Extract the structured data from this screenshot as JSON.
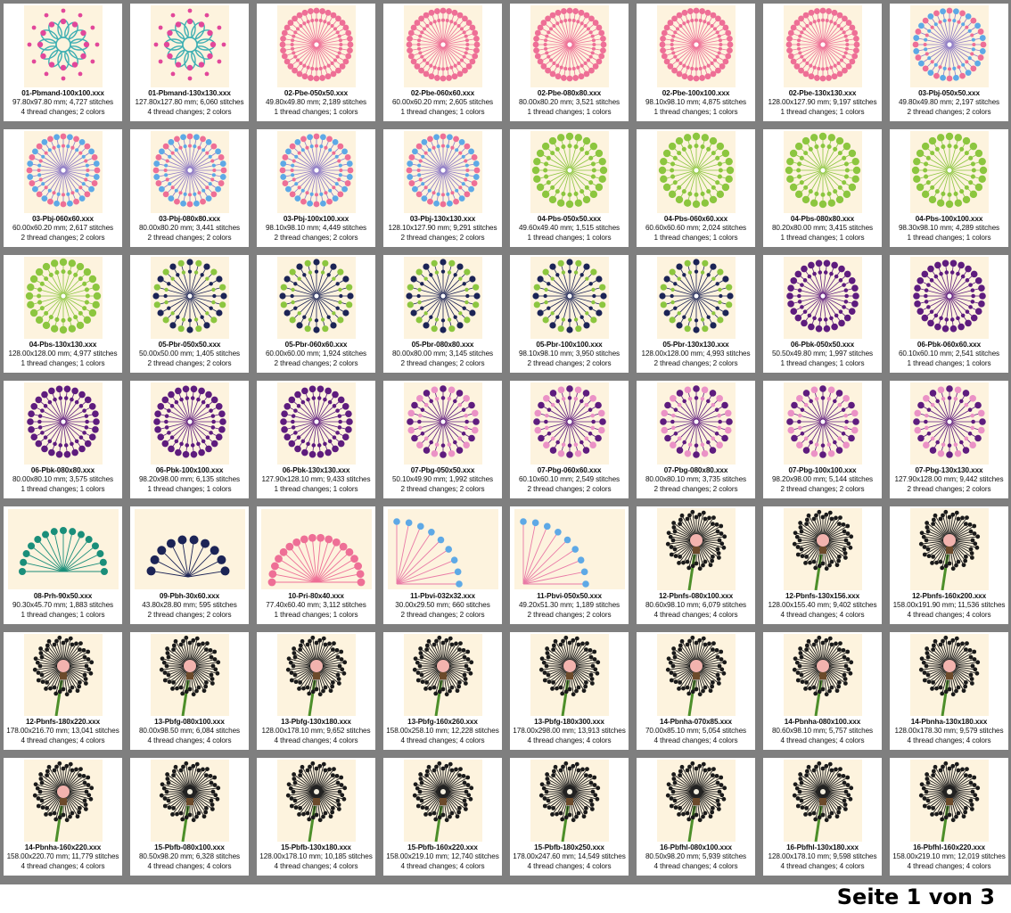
{
  "page_label": "Seite 1 von 3",
  "colors": {
    "background_grid": "#7f7f7f",
    "card": "#ffffff",
    "thumb_bg": "#fdf3de",
    "pink": "#ee6f96",
    "blue": "#5ea9e6",
    "green": "#8cc63f",
    "navy": "#1c2456",
    "purple": "#5e1c7e",
    "lightpink": "#eb92c6",
    "teal": "#1a8e7a",
    "blackhead": "#1a1a1a",
    "stem": "#4d8f2a",
    "center_peach": "#f2b3ae"
  },
  "items": [
    {
      "name": "01-Pbmand-100x100.xxx",
      "size": "97.80x97.80 mm; 4,727 stitches",
      "info": "4 thread changes; 2 colors",
      "art": "mandala"
    },
    {
      "name": "01-Pbmand-130x130.xxx",
      "size": "127.80x127.80 mm; 6,060 stitches",
      "info": "4 thread changes; 2 colors",
      "art": "mandala"
    },
    {
      "name": "02-Pbe-050x50.xxx",
      "size": "49.80x49.80 mm; 2,189 stitches",
      "info": "1 thread changes; 1 colors",
      "art": "pink"
    },
    {
      "name": "02-Pbe-060x60.xxx",
      "size": "60.00x60.20 mm; 2,605 stitches",
      "info": "1 thread changes; 1 colors",
      "art": "pink"
    },
    {
      "name": "02-Pbe-080x80.xxx",
      "size": "80.00x80.20 mm; 3,521 stitches",
      "info": "1 thread changes; 1 colors",
      "art": "pink"
    },
    {
      "name": "02-Pbe-100x100.xxx",
      "size": "98.10x98.10 mm; 4,875 stitches",
      "info": "1 thread changes; 1 colors",
      "art": "pink"
    },
    {
      "name": "02-Pbe-130x130.xxx",
      "size": "128.00x127.90 mm; 9,197 stitches",
      "info": "1 thread changes; 1 colors",
      "art": "pink"
    },
    {
      "name": "03-Pbj-050x50.xxx",
      "size": "49.80x49.80 mm; 2,197 stitches",
      "info": "2 thread changes; 2 colors",
      "art": "pinkblue"
    },
    {
      "name": "03-Pbj-060x60.xxx",
      "size": "60.00x60.20 mm; 2,617 stitches",
      "info": "2 thread changes; 2 colors",
      "art": "pinkblue"
    },
    {
      "name": "03-Pbj-080x80.xxx",
      "size": "80.00x80.20 mm; 3,441 stitches",
      "info": "2 thread changes; 2 colors",
      "art": "pinkblue"
    },
    {
      "name": "03-Pbj-100x100.xxx",
      "size": "98.10x98.10 mm; 4,449 stitches",
      "info": "2 thread changes; 2 colors",
      "art": "pinkblue"
    },
    {
      "name": "03-Pbj-130x130.xxx",
      "size": "128.10x127.90 mm; 9,291 stitches",
      "info": "2 thread changes; 2 colors",
      "art": "pinkblue"
    },
    {
      "name": "04-Pbs-050x50.xxx",
      "size": "49.60x49.40 mm; 1,515 stitches",
      "info": "1 thread changes; 1 colors",
      "art": "green"
    },
    {
      "name": "04-Pbs-060x60.xxx",
      "size": "60.60x60.60 mm; 2,024 stitches",
      "info": "1 thread changes; 1 colors",
      "art": "green"
    },
    {
      "name": "04-Pbs-080x80.xxx",
      "size": "80.20x80.00 mm; 3,415 stitches",
      "info": "1 thread changes; 1 colors",
      "art": "green"
    },
    {
      "name": "04-Pbs-100x100.xxx",
      "size": "98.30x98.10 mm; 4,289 stitches",
      "info": "1 thread changes; 1 colors",
      "art": "green"
    },
    {
      "name": "04-Pbs-130x130.xxx",
      "size": "128.00x128.00 mm; 4,977 stitches",
      "info": "1 thread changes; 1 colors",
      "art": "green"
    },
    {
      "name": "05-Pbr-050x50.xxx",
      "size": "50.00x50.00 mm; 1,405 stitches",
      "info": "2 thread changes; 2 colors",
      "art": "navygreen"
    },
    {
      "name": "05-Pbr-060x60.xxx",
      "size": "60.00x60.00 mm; 1,924 stitches",
      "info": "2 thread changes; 2 colors",
      "art": "navygreen"
    },
    {
      "name": "05-Pbr-080x80.xxx",
      "size": "80.00x80.00 mm; 3,145 stitches",
      "info": "2 thread changes; 2 colors",
      "art": "navygreen"
    },
    {
      "name": "05-Pbr-100x100.xxx",
      "size": "98.10x98.10 mm; 3,950 stitches",
      "info": "2 thread changes; 2 colors",
      "art": "navygreen"
    },
    {
      "name": "05-Pbr-130x130.xxx",
      "size": "128.00x128.00 mm; 4,993 stitches",
      "info": "2 thread changes; 2 colors",
      "art": "navygreen"
    },
    {
      "name": "06-Pbk-050x50.xxx",
      "size": "50.50x49.80 mm; 1,997 stitches",
      "info": "1 thread changes; 1 colors",
      "art": "purple"
    },
    {
      "name": "06-Pbk-060x60.xxx",
      "size": "60.10x60.10 mm; 2,541 stitches",
      "info": "1 thread changes; 1 colors",
      "art": "purple"
    },
    {
      "name": "06-Pbk-080x80.xxx",
      "size": "80.00x80.10 mm; 3,575 stitches",
      "info": "1 thread changes; 1 colors",
      "art": "purple"
    },
    {
      "name": "06-Pbk-100x100.xxx",
      "size": "98.20x98.00 mm; 6,135 stitches",
      "info": "1 thread changes; 1 colors",
      "art": "purple"
    },
    {
      "name": "06-Pbk-130x130.xxx",
      "size": "127.90x128.10 mm; 9,433 stitches",
      "info": "1 thread changes; 1 colors",
      "art": "purple"
    },
    {
      "name": "07-Pbg-050x50.xxx",
      "size": "50.10x49.90 mm; 1,992 stitches",
      "info": "2 thread changes; 2 colors",
      "art": "purplepink"
    },
    {
      "name": "07-Pbg-060x60.xxx",
      "size": "60.10x60.10 mm; 2,549 stitches",
      "info": "2 thread changes; 2 colors",
      "art": "purplepink"
    },
    {
      "name": "07-Pbg-080x80.xxx",
      "size": "80.00x80.10 mm; 3,735 stitches",
      "info": "2 thread changes; 2 colors",
      "art": "purplepink"
    },
    {
      "name": "07-Pbg-100x100.xxx",
      "size": "98.20x98.00 mm; 5,144 stitches",
      "info": "2 thread changes; 2 colors",
      "art": "purplepink"
    },
    {
      "name": "07-Pbg-130x130.xxx",
      "size": "127.90x128.00 mm; 9,442 stitches",
      "info": "2 thread changes; 2 colors",
      "art": "purplepink"
    },
    {
      "name": "08-Prh-90x50.xxx",
      "size": "90.30x45.70 mm; 1,883 stitches",
      "info": "1 thread changes; 1 colors",
      "art": "fanteal"
    },
    {
      "name": "09-Pbh-30x60.xxx",
      "size": "43.80x28.80 mm; 595 stitches",
      "info": "2 thread changes; 2 colors",
      "art": "fannavy"
    },
    {
      "name": "10-Pri-80x40.xxx",
      "size": "77.40x60.40 mm; 3,112 stitches",
      "info": "1 thread changes; 1 colors",
      "art": "fanpink"
    },
    {
      "name": "11-Pbvi-032x32.xxx",
      "size": "30.00x29.50 mm; 660 stitches",
      "info": "2 thread changes; 2 colors",
      "art": "cornerblue"
    },
    {
      "name": "11-Pbvi-050x50.xxx",
      "size": "49.20x51.30 mm; 1,189 stitches",
      "info": "2 thread changes; 2 colors",
      "art": "cornerblue"
    },
    {
      "name": "12-Pbnfs-080x100.xxx",
      "size": "80.60x98.10 mm; 6,079 stitches",
      "info": "4 thread changes; 4 colors",
      "art": "dandelion"
    },
    {
      "name": "12-Pbnfs-130x156.xxx",
      "size": "128.00x155.40 mm; 9,402 stitches",
      "info": "4 thread changes; 4 colors",
      "art": "dandelion"
    },
    {
      "name": "12-Pbnfs-160x200.xxx",
      "size": "158.00x191.90 mm; 11,536 stitches",
      "info": "4 thread changes; 4 colors",
      "art": "dandelion"
    },
    {
      "name": "12-Pbnfs-180x220.xxx",
      "size": "178.00x216.70 mm; 13,041 stitches",
      "info": "4 thread changes; 4 colors",
      "art": "dandelion"
    },
    {
      "name": "13-Pbfg-080x100.xxx",
      "size": "80.00x98.50 mm; 6,084 stitches",
      "info": "4 thread changes; 4 colors",
      "art": "dandelion"
    },
    {
      "name": "13-Pbfg-130x180.xxx",
      "size": "128.00x178.10 mm; 9,652 stitches",
      "info": "4 thread changes; 4 colors",
      "art": "dandelion"
    },
    {
      "name": "13-Pbfg-160x260.xxx",
      "size": "158.00x258.10 mm; 12,228 stitches",
      "info": "4 thread changes; 4 colors",
      "art": "dandelion"
    },
    {
      "name": "13-Pbfg-180x300.xxx",
      "size": "178.00x298.00 mm; 13,913 stitches",
      "info": "4 thread changes; 4 colors",
      "art": "dandelion"
    },
    {
      "name": "14-Pbnha-070x85.xxx",
      "size": "70.00x85.10 mm; 5,054 stitches",
      "info": "4 thread changes; 4 colors",
      "art": "dandelion"
    },
    {
      "name": "14-Pbnha-080x100.xxx",
      "size": "80.60x98.10 mm; 5,757 stitches",
      "info": "4 thread changes; 4 colors",
      "art": "dandelion"
    },
    {
      "name": "14-Pbnha-130x180.xxx",
      "size": "128.00x178.30 mm; 9,579 stitches",
      "info": "4 thread changes; 4 colors",
      "art": "dandelion"
    },
    {
      "name": "14-Pbnha-160x220.xxx",
      "size": "158.00x220.70 mm; 11,779 stitches",
      "info": "4 thread changes; 4 colors",
      "art": "dandelion"
    },
    {
      "name": "15-Pbfb-080x100.xxx",
      "size": "80.50x98.20 mm; 6,328 stitches",
      "info": "4 thread changes; 4 colors",
      "art": "dandelion-dark"
    },
    {
      "name": "15-Pbfb-130x180.xxx",
      "size": "128.00x178.10 mm; 10,185 stitches",
      "info": "4 thread changes; 4 colors",
      "art": "dandelion-dark"
    },
    {
      "name": "15-Pbfb-160x220.xxx",
      "size": "158.00x219.10 mm; 12,740 stitches",
      "info": "4 thread changes; 4 colors",
      "art": "dandelion-dark"
    },
    {
      "name": "15-Pbfb-180x250.xxx",
      "size": "178.00x247.60 mm; 14,549 stitches",
      "info": "4 thread changes; 4 colors",
      "art": "dandelion-dark"
    },
    {
      "name": "16-Pbfhl-080x100.xxx",
      "size": "80.50x98.20 mm; 5,939 stitches",
      "info": "4 thread changes; 4 colors",
      "art": "dandelion-dark"
    },
    {
      "name": "16-Pbfhl-130x180.xxx",
      "size": "128.00x178.10 mm; 9,598 stitches",
      "info": "4 thread changes; 4 colors",
      "art": "dandelion-dark"
    },
    {
      "name": "16-Pbfhl-160x220.xxx",
      "size": "158.00x219.10 mm; 12,019 stitches",
      "info": "4 thread changes; 4 colors",
      "art": "dandelion-dark"
    }
  ]
}
